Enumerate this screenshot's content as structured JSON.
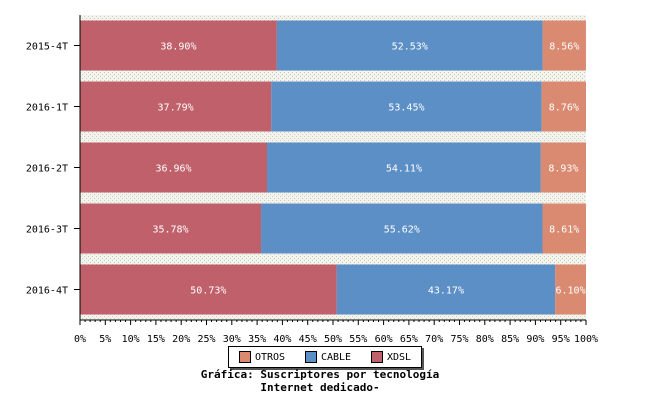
{
  "chart_data": {
    "type": "bar",
    "orientation": "horizontal",
    "stacked": true,
    "categories": [
      "2015-4T",
      "2016-1T",
      "2016-2T",
      "2016-3T",
      "2016-4T"
    ],
    "series": [
      {
        "name": "XDSL",
        "color": "#c0606b",
        "values": [
          38.9,
          37.79,
          36.96,
          35.78,
          50.73
        ],
        "labels": [
          "38.90%",
          "37.79%",
          "36.96%",
          "35.78%",
          "50.73%"
        ]
      },
      {
        "name": "CABLE",
        "color": "#5b8fc6",
        "values": [
          52.53,
          53.45,
          54.11,
          55.62,
          43.17
        ],
        "labels": [
          "52.53%",
          "53.45%",
          "54.11%",
          "55.62%",
          "43.17%"
        ]
      },
      {
        "name": "OTROS",
        "color": "#d98a70",
        "values": [
          8.56,
          8.76,
          8.93,
          8.61,
          6.1
        ],
        "labels": [
          "8.56%",
          "8.76%",
          "8.93%",
          "8.61%",
          "6.10%"
        ]
      }
    ],
    "xlim": [
      0,
      100
    ],
    "xticks": [
      "0%",
      "5%",
      "10%",
      "15%",
      "20%",
      "25%",
      "30%",
      "35%",
      "40%",
      "45%",
      "50%",
      "55%",
      "60%",
      "65%",
      "70%",
      "75%",
      "80%",
      "85%",
      "90%",
      "95%",
      "100%"
    ],
    "grid": true,
    "legend_position": "bottom-center",
    "legend_order": [
      "OTROS",
      "CABLE",
      "XDSL"
    ],
    "title": [
      "Gráfica: Suscriptores por tecnología",
      "Internet dedicado-"
    ]
  }
}
